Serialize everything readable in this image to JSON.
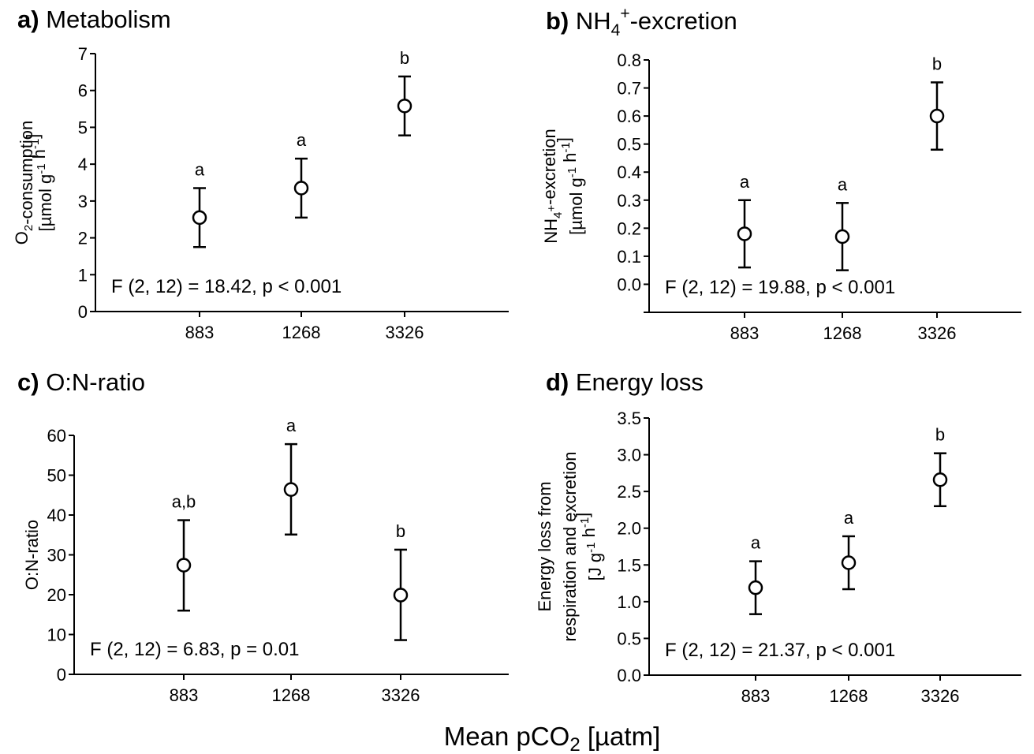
{
  "figure": {
    "common_xlabel": "Mean pCO",
    "common_xlabel_sub": "2",
    "common_xlabel_unit": " [µatm]"
  },
  "chart_data": [
    {
      "type": "scatter",
      "panel": "a)",
      "title": "Metabolism",
      "ylabel_line1_parts": [
        [
          "O",
          ""
        ],
        [
          "2",
          "sub"
        ],
        [
          "-consumption",
          ""
        ]
      ],
      "ylabel_line2_parts": [
        [
          "[µmol g",
          ""
        ],
        [
          "-1",
          "sup"
        ],
        [
          " h",
          ""
        ],
        [
          "-1",
          "sup"
        ],
        [
          "]",
          ""
        ]
      ],
      "categories": [
        "883",
        "1268",
        "3326"
      ],
      "values": [
        2.55,
        3.35,
        5.58
      ],
      "err_low": [
        1.75,
        2.55,
        4.78
      ],
      "err_high": [
        3.35,
        4.15,
        6.38
      ],
      "sig_letters": [
        "a",
        "a",
        "b"
      ],
      "stat": "F (2, 12) = 18.42, p < 0.001",
      "ylim": [
        0,
        7
      ],
      "yticks": [
        0,
        1,
        2,
        3,
        4,
        5,
        6,
        7
      ],
      "ytick_labels": [
        "0",
        "1",
        "2",
        "3",
        "4",
        "5",
        "6",
        "7"
      ]
    },
    {
      "type": "scatter",
      "panel": "b)",
      "title": "NH",
      "title_sub": "4",
      "title_sup": "+",
      "title_rest": "-excretion",
      "ylabel_line1_parts": [
        [
          "NH",
          ""
        ],
        [
          "4",
          "sub"
        ],
        [
          "+",
          "sup"
        ],
        [
          "-excretion",
          ""
        ]
      ],
      "ylabel_line2_parts": [
        [
          "[µmol g",
          ""
        ],
        [
          "-1",
          "sup"
        ],
        [
          " h",
          ""
        ],
        [
          "-1",
          "sup"
        ],
        [
          "]",
          ""
        ]
      ],
      "categories": [
        "883",
        "1268",
        "3326"
      ],
      "values": [
        0.18,
        0.17,
        0.6
      ],
      "err_low": [
        0.06,
        0.05,
        0.48
      ],
      "err_high": [
        0.3,
        0.29,
        0.72
      ],
      "sig_letters": [
        "a",
        "a",
        "b"
      ],
      "stat": "F (2, 12) = 19.88, p < 0.001",
      "ylim": [
        -0.1,
        0.8
      ],
      "yticks": [
        -0.1,
        0.0,
        0.1,
        0.2,
        0.3,
        0.4,
        0.5,
        0.6,
        0.7,
        0.8
      ],
      "ytick_labels": [
        "",
        "0.0",
        "0.1",
        "0.2",
        "0.3",
        "0.4",
        "0.5",
        "0.6",
        "0.7",
        "0.8"
      ]
    },
    {
      "type": "scatter",
      "panel": "c)",
      "title": "O:N-ratio",
      "ylabel_line1_parts": [
        [
          "O:N-ratio",
          ""
        ]
      ],
      "ylabel_line2_parts": [],
      "categories": [
        "883",
        "1268",
        "3326"
      ],
      "values": [
        27.4,
        46.4,
        19.9
      ],
      "err_low": [
        16.0,
        35.1,
        8.6
      ],
      "err_high": [
        38.7,
        57.8,
        31.3
      ],
      "sig_letters": [
        "a,b",
        "a",
        "b"
      ],
      "stat": "F (2, 12) = 6.83, p = 0.01",
      "ylim": [
        0,
        60
      ],
      "yticks": [
        0,
        10,
        20,
        30,
        40,
        50,
        60
      ],
      "ytick_labels": [
        "0",
        "10",
        "20",
        "30",
        "40",
        "50",
        "60"
      ]
    },
    {
      "type": "scatter",
      "panel": "d)",
      "title": "Energy loss",
      "ylabel_line0_parts": [
        [
          "Energy loss from",
          ""
        ]
      ],
      "ylabel_line1_parts": [
        [
          "respiration and excretion",
          ""
        ]
      ],
      "ylabel_line2_parts": [
        [
          "[J g",
          ""
        ],
        [
          "-1",
          "sup"
        ],
        [
          " h",
          ""
        ],
        [
          "-1",
          "sup"
        ],
        [
          "]",
          ""
        ]
      ],
      "categories": [
        "883",
        "1268",
        "3326"
      ],
      "values": [
        1.19,
        1.53,
        2.66
      ],
      "err_low": [
        0.83,
        1.17,
        2.3
      ],
      "err_high": [
        1.55,
        1.89,
        3.02
      ],
      "sig_letters": [
        "a",
        "a",
        "b"
      ],
      "stat": "F (2, 12) = 21.37, p < 0.001",
      "ylim": [
        0,
        3.5
      ],
      "yticks": [
        0,
        0.5,
        1.0,
        1.5,
        2.0,
        2.5,
        3.0,
        3.5
      ],
      "ytick_labels": [
        "0.0",
        "0.5",
        "1.0",
        "1.5",
        "2.0",
        "2.5",
        "3.0",
        "3.5"
      ]
    }
  ]
}
